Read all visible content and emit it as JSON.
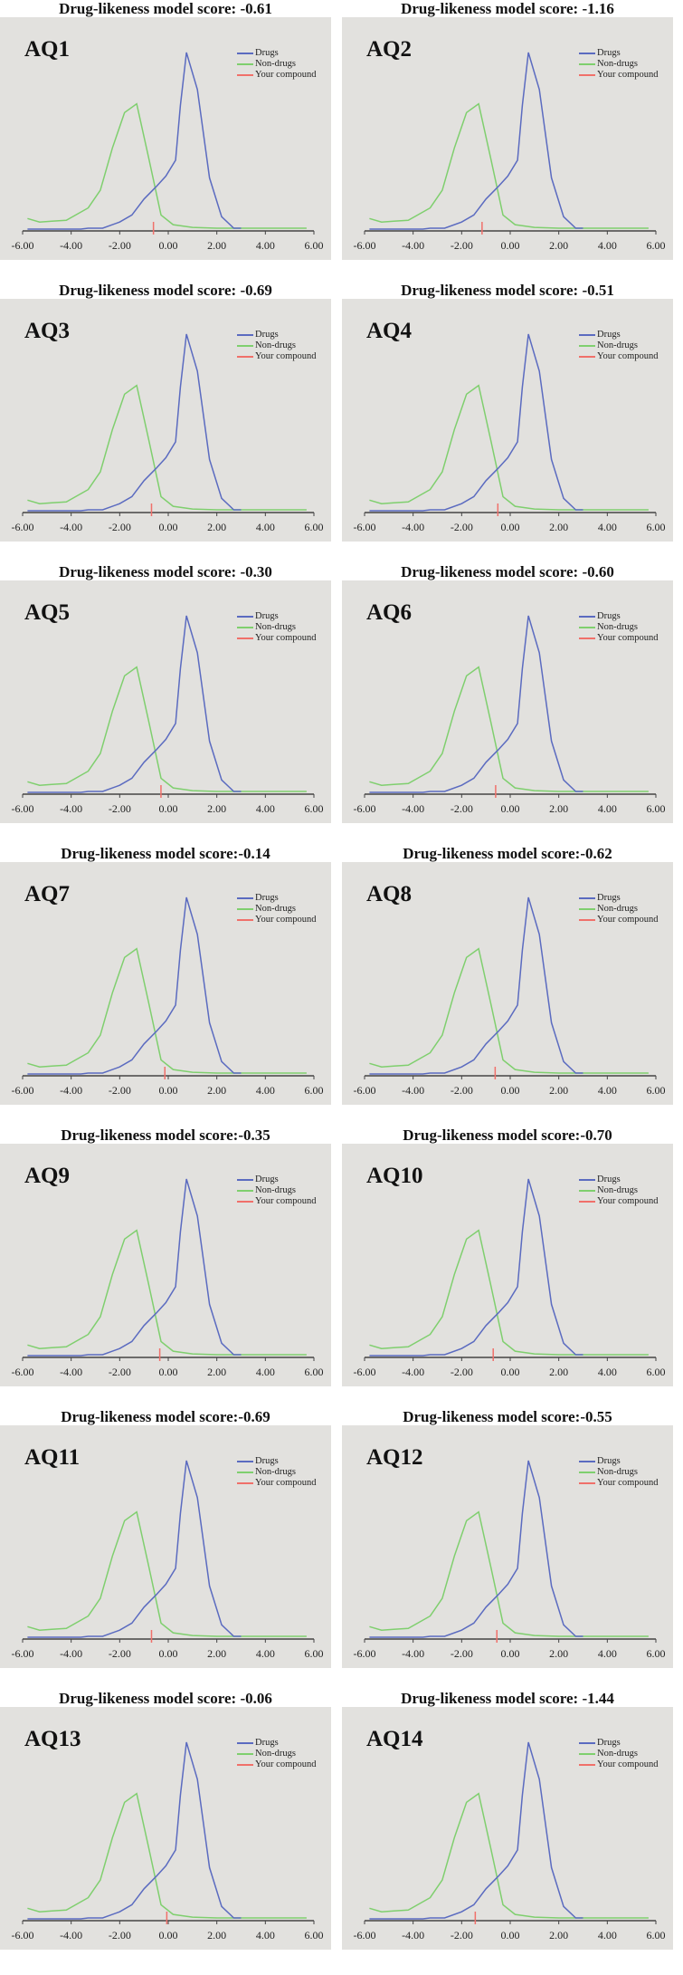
{
  "chart_data": {
    "type": "line",
    "xlabel": "",
    "ylabel": "",
    "xlim": [
      -6,
      6
    ],
    "ylim": [
      0,
      1
    ],
    "x_ticks": [
      "-6.00",
      "-4.00",
      "-2.00",
      "0.00",
      "2.00",
      "4.00",
      "6.00"
    ],
    "legend": [
      {
        "name": "Drugs",
        "color": "#5b6bc0"
      },
      {
        "name": "Non-drugs",
        "color": "#7fcf6e"
      },
      {
        "name": "Your compound",
        "color": "#f0706a"
      }
    ],
    "series": [
      {
        "name": "Drugs",
        "color": "#5b6bc0",
        "x": [
          -5.8,
          -3.6,
          -3.3,
          -2.7,
          -2.0,
          -1.5,
          -1.0,
          -0.5,
          -0.1,
          0.3,
          0.5,
          0.75,
          1.2,
          1.7,
          2.2,
          2.7,
          3.0
        ],
        "y": [
          0,
          0,
          0.005,
          0.005,
          0.04,
          0.08,
          0.17,
          0.24,
          0.3,
          0.39,
          0.7,
          1.0,
          0.79,
          0.29,
          0.07,
          0.005,
          0.005
        ]
      },
      {
        "name": "Non-drugs",
        "color": "#7fcf6e",
        "x": [
          -5.8,
          -5.3,
          -4.8,
          -4.2,
          -3.3,
          -2.8,
          -2.3,
          -1.8,
          -1.3,
          -0.8,
          -0.3,
          0.2,
          1.0,
          2.0,
          5.7
        ],
        "y": [
          0.06,
          0.04,
          0.045,
          0.05,
          0.12,
          0.22,
          0.46,
          0.66,
          0.71,
          0.4,
          0.08,
          0.025,
          0.01,
          0.005,
          0.005
        ]
      }
    ],
    "panels": [
      {
        "label": "AQ1",
        "title": "Drug-likeness model score: -0.61",
        "score": -0.61
      },
      {
        "label": "AQ2",
        "title": "Drug-likeness model score: -1.16",
        "score": -1.16
      },
      {
        "label": "AQ3",
        "title": "Drug-likeness model score: -0.69",
        "score": -0.69
      },
      {
        "label": "AQ4",
        "title": "Drug-likeness model score: -0.51",
        "score": -0.51
      },
      {
        "label": "AQ5",
        "title": "Drug-likeness model score: -0.30",
        "score": -0.3
      },
      {
        "label": "AQ6",
        "title": "Drug-likeness model score: -0.60",
        "score": -0.6
      },
      {
        "label": "AQ7",
        "title": "Drug-likeness model score:-0.14",
        "score": -0.14
      },
      {
        "label": "AQ8",
        "title": "Drug-likeness model score:-0.62",
        "score": -0.62
      },
      {
        "label": "AQ9",
        "title": "Drug-likeness model score:-0.35",
        "score": -0.35
      },
      {
        "label": "AQ10",
        "title": "Drug-likeness model score:-0.70",
        "score": -0.7
      },
      {
        "label": "AQ11",
        "title": "Drug-likeness model score:-0.69",
        "score": -0.69
      },
      {
        "label": "AQ12",
        "title": "Drug-likeness model score:-0.55",
        "score": -0.55
      },
      {
        "label": "AQ13",
        "title": "Drug-likeness model score: -0.06",
        "score": -0.06
      },
      {
        "label": "AQ14",
        "title": "Drug-likeness model score: -1.44",
        "score": -1.44
      }
    ]
  }
}
